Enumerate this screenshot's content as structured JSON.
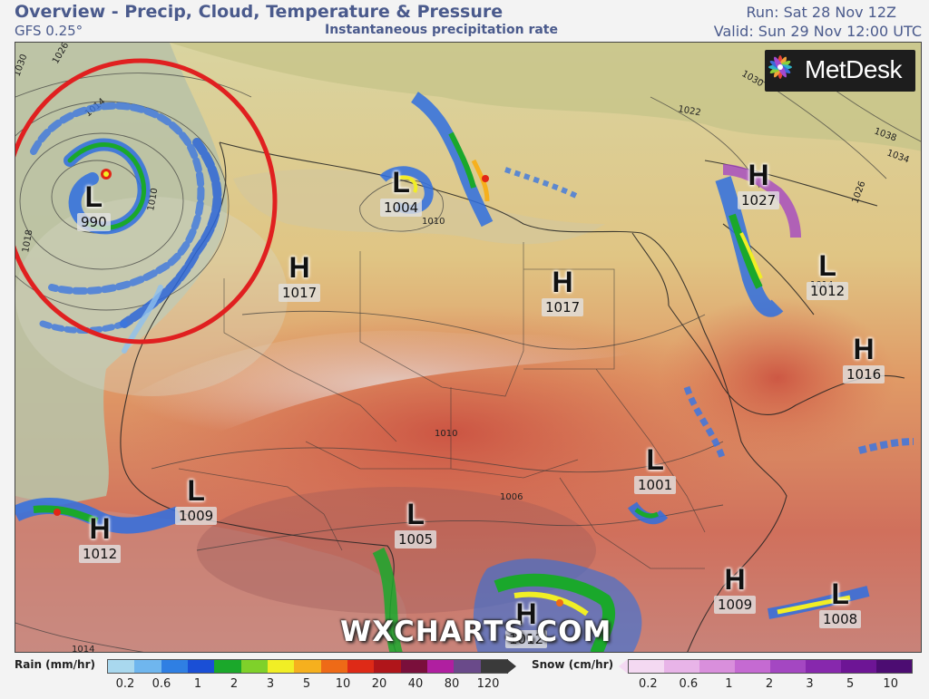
{
  "header": {
    "title": "Overview - Precip, Cloud, Temperature & Pressure",
    "model": "GFS 0.25°",
    "field": "Instantaneous precipitation rate",
    "run": "Run: Sat 28 Nov 12Z",
    "valid": "Valid: Sun 29 Nov 12:00 UTC"
  },
  "logo": {
    "text": "MetDesk",
    "icon": "metdesk-star-icon"
  },
  "watermark": "WXCHARTS.COM",
  "pressure_centers": [
    {
      "type": "L",
      "value": "990"
    },
    {
      "type": "L",
      "value": "1004"
    },
    {
      "type": "H",
      "value": "1017"
    },
    {
      "type": "H",
      "value": "1017"
    },
    {
      "type": "H",
      "value": "1027"
    },
    {
      "type": "L",
      "value": "1012"
    },
    {
      "type": "H",
      "value": "1016"
    },
    {
      "type": "L",
      "value": "1001"
    },
    {
      "type": "L",
      "value": "1009"
    },
    {
      "type": "H",
      "value": "1012"
    },
    {
      "type": "L",
      "value": "1005"
    },
    {
      "type": "H",
      "value": "1012"
    },
    {
      "type": "H",
      "value": "1009"
    },
    {
      "type": "L",
      "value": "1008"
    }
  ],
  "isobar_labels": [
    "1030",
    "1026",
    "1014",
    "1018",
    "1010",
    "1010",
    "1022",
    "1030",
    "1034",
    "1038",
    "1026",
    "1014",
    "1010",
    "1006",
    "1014"
  ],
  "legend": {
    "rain_label": "Rain (mm/hr)",
    "rain_ticks": [
      "0.2",
      "0.6",
      "1",
      "2",
      "3",
      "5",
      "10",
      "20",
      "40",
      "80",
      "120"
    ],
    "rain_colors": [
      "#a9d8ee",
      "#6fb6ee",
      "#2f7fe3",
      "#1a4fd6",
      "#1ba82b",
      "#7fd12a",
      "#f1ee25",
      "#f6b01e",
      "#ee6a17",
      "#de2a17",
      "#b0151a",
      "#7a0f3b",
      "#b01fa0",
      "#6a4a8a",
      "#3a3a3a"
    ],
    "snow_label": "Snow (cm/hr)",
    "snow_ticks": [
      "0.2",
      "0.6",
      "1",
      "2",
      "3",
      "5",
      "10"
    ],
    "snow_colors": [
      "#f4d9f2",
      "#e8b4e8",
      "#d98fdc",
      "#c56ad2",
      "#a447c2",
      "#8728ad",
      "#6d1595",
      "#4c0c72"
    ]
  },
  "annotation": {
    "name": "highlight-circle",
    "color": "#e02020"
  }
}
